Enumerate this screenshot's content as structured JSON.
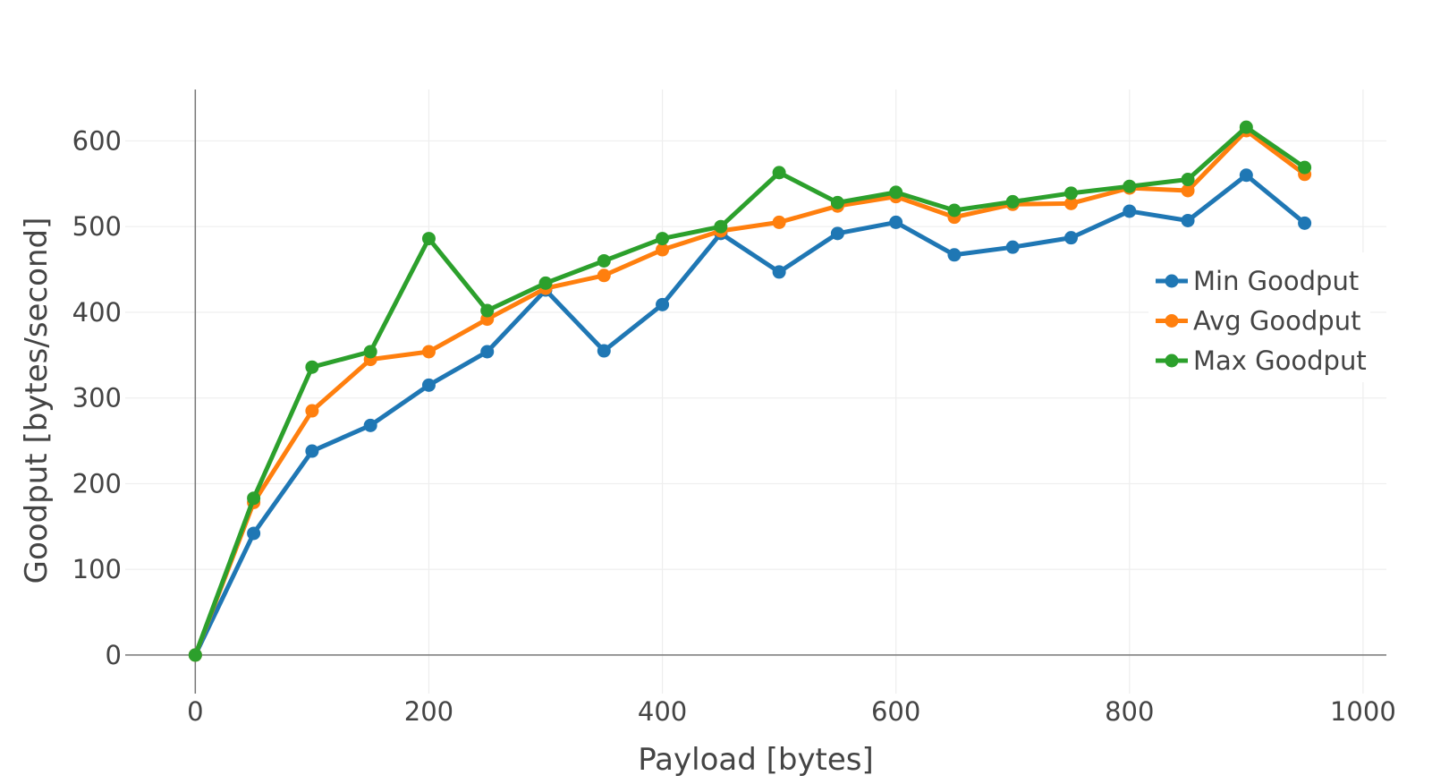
{
  "chart_data": {
    "type": "line",
    "title": "",
    "xlabel": "Payload [bytes]",
    "ylabel": "Goodput [bytes/second]",
    "xlim": [
      -60,
      1020
    ],
    "ylim": [
      -45,
      660
    ],
    "x_ticks": [
      0,
      200,
      400,
      600,
      800,
      1000
    ],
    "y_ticks": [
      0,
      100,
      200,
      300,
      400,
      500,
      600
    ],
    "grid": true,
    "legend_position": "right",
    "x": [
      0,
      50,
      100,
      150,
      200,
      250,
      300,
      350,
      400,
      450,
      500,
      550,
      600,
      650,
      700,
      750,
      800,
      850,
      900,
      950
    ],
    "series": [
      {
        "name": "Min Goodput",
        "color": "#1f77b4",
        "values": [
          0,
          142,
          238,
          268,
          315,
          354,
          426,
          355,
          409,
          492,
          447,
          492,
          505,
          467,
          476,
          487,
          518,
          507,
          560,
          504
        ]
      },
      {
        "name": "Avg Goodput",
        "color": "#ff7f0e",
        "values": [
          0,
          178,
          285,
          345,
          354,
          392,
          428,
          443,
          473,
          495,
          505,
          524,
          535,
          511,
          526,
          527,
          545,
          542,
          612,
          561
        ]
      },
      {
        "name": "Max Goodput",
        "color": "#2ca02c",
        "values": [
          0,
          183,
          336,
          354,
          486,
          402,
          434,
          460,
          486,
          500,
          563,
          528,
          540,
          519,
          529,
          539,
          547,
          555,
          616,
          569
        ]
      }
    ]
  }
}
